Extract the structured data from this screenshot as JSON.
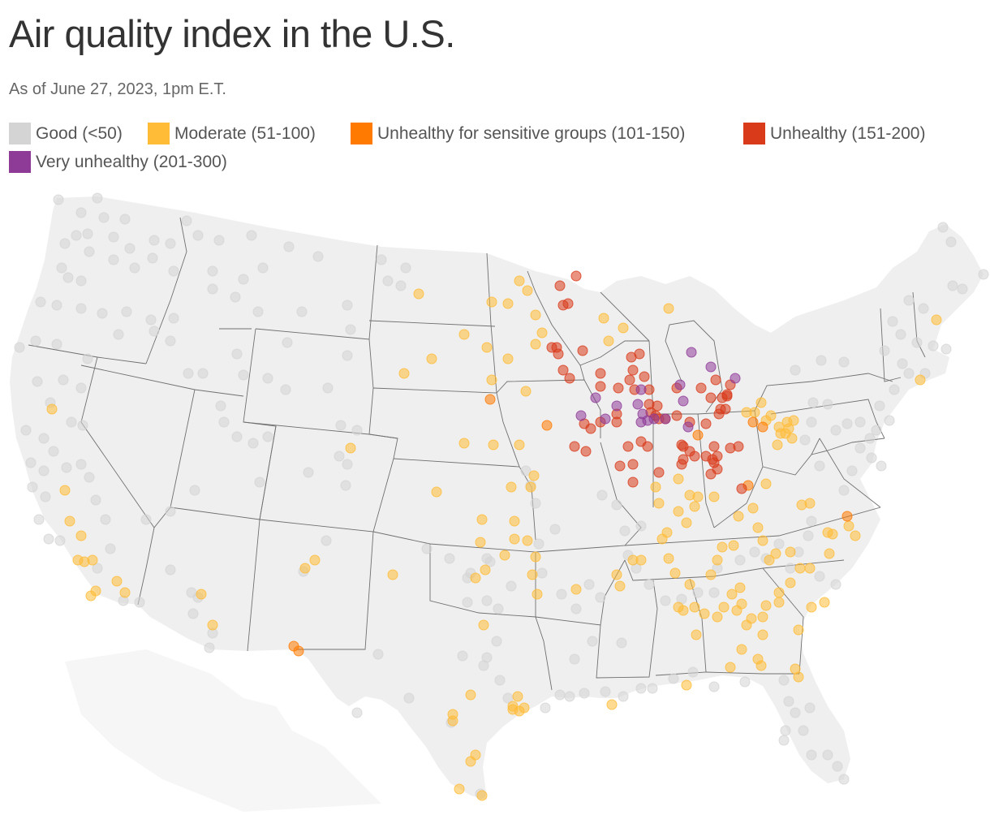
{
  "title": "Air quality index in the U.S.",
  "subtitle": "As of June 27, 2023, 1pm E.T.",
  "legend": [
    {
      "label": "Good (<50)",
      "color": "#d4d4d4",
      "key": "good"
    },
    {
      "label": "Moderate (51-100)",
      "color": "#ffbc36",
      "key": "moderate"
    },
    {
      "label": "Unhealthy for sensitive groups (101-150)",
      "color": "#ff7a00",
      "key": "usg"
    },
    {
      "label": "Unhealthy (151-200)",
      "color": "#d93a1a",
      "key": "unhealthy"
    },
    {
      "label": "Very unhealthy (201-300)",
      "color": "#8e3b98",
      "key": "very_unhealthy"
    }
  ],
  "colors": {
    "land": "#efefef",
    "border": "#6e6e6e",
    "background": "#ffffff"
  }
}
